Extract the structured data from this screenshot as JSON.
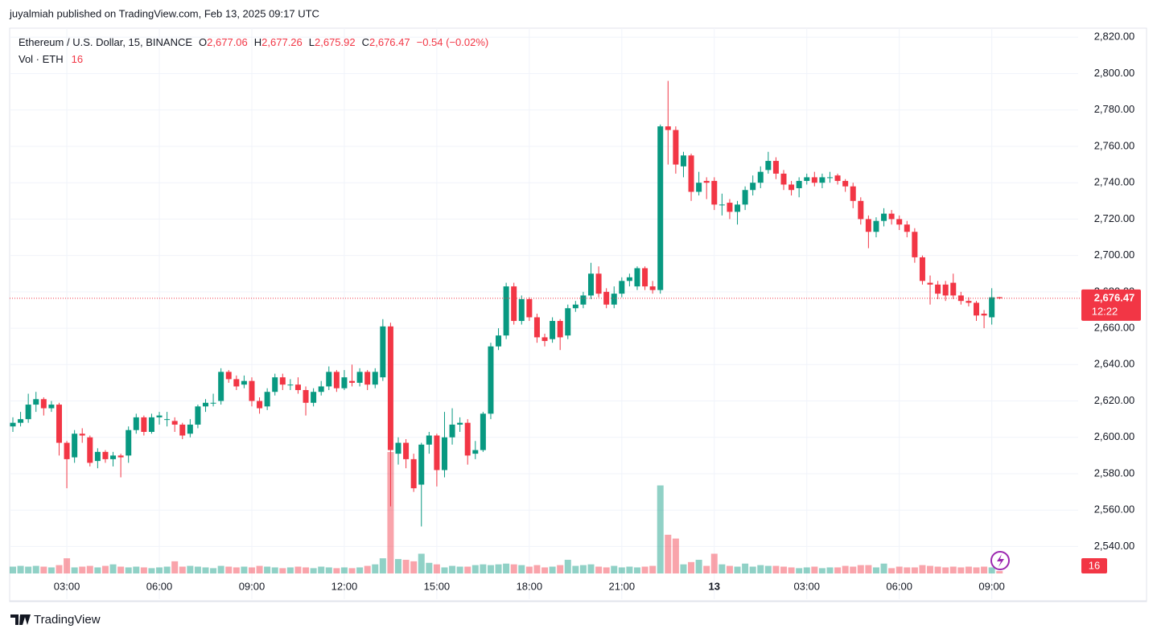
{
  "header": {
    "text": "juyalmiah published on TradingView.com, Feb 13, 2025 09:17 UTC"
  },
  "footer": {
    "brand": "TradingView"
  },
  "chart_data": {
    "type": "candlestick",
    "legend": {
      "symbol": "Ethereum / U.S. Dollar, 15, BINANCE",
      "o": "O",
      "open": "2,677.06",
      "h": "H",
      "high": "2,677.26",
      "l": "L",
      "low": "2,675.92",
      "c": "C",
      "close": "2,676.47",
      "change": "−0.54 (−0.02%)",
      "volume_title": "Vol · ETH"
    },
    "categories": [
      null,
      null,
      null,
      null,
      null,
      null,
      null,
      "03:00",
      null,
      null,
      null,
      null,
      null,
      null,
      null,
      null,
      null,
      null,
      null,
      "06:00",
      null,
      null,
      null,
      null,
      null,
      null,
      null,
      null,
      null,
      null,
      null,
      "09:00",
      null,
      null,
      null,
      null,
      null,
      null,
      null,
      null,
      null,
      null,
      null,
      "12:00",
      null,
      null,
      null,
      null,
      null,
      null,
      null,
      null,
      null,
      null,
      null,
      "15:00",
      null,
      null,
      null,
      null,
      null,
      null,
      null,
      null,
      null,
      null,
      null,
      "18:00",
      null,
      null,
      null,
      null,
      null,
      null,
      null,
      null,
      null,
      null,
      null,
      "21:00",
      null,
      null,
      null,
      null,
      null,
      null,
      null,
      null,
      null,
      null,
      null,
      "13",
      null,
      null,
      null,
      null,
      null,
      null,
      null,
      null,
      null,
      null,
      null,
      "03:00",
      null,
      null,
      null,
      null,
      null,
      null,
      null,
      null,
      null,
      null,
      null,
      "06:00",
      null,
      null,
      null,
      null,
      null,
      null,
      null,
      null,
      null,
      null,
      null,
      "09:00",
      null
    ],
    "open": [
      2606,
      2608,
      2610,
      2618,
      2621,
      2616,
      2618,
      2597,
      2589,
      2602,
      2600,
      2587,
      2592,
      2588,
      2590,
      2590,
      2604,
      2611,
      2603,
      2611,
      2610,
      2609,
      2607,
      2602,
      2607,
      2617,
      2619,
      2620,
      2636,
      2632,
      2629,
      2631,
      2620,
      2617,
      2625,
      2633,
      2629,
      2629,
      2626,
      2619,
      2625,
      2628,
      2636,
      2627,
      2631,
      2630,
      2636,
      2629,
      2633,
      2661,
      2591,
      2597,
      2588,
      2574,
      2596,
      2601,
      2582,
      2600,
      2607,
      2608,
      2591,
      2593,
      2613,
      2650,
      2656,
      2683,
      2664,
      2676,
      2666,
      2655,
      2654,
      2664,
      2656,
      2671,
      2673,
      2678,
      2690,
      2680,
      2673,
      2679,
      2686,
      2683,
      2693,
      2683,
      2681,
      2771,
      2769,
      2749,
      2755,
      2735,
      2741,
      2741,
      2728,
      2729,
      2724,
      2728,
      2736,
      2740,
      2747,
      2752,
      2745,
      2739,
      2737,
      2741,
      2743,
      2740,
      2743,
      2744,
      2741,
      2738,
      2730,
      2720,
      2713,
      2719,
      2723,
      2720,
      2717,
      2713,
      2699,
      2685,
      2684,
      2684,
      2685,
      2678,
      2675,
      2674,
      2668,
      2666,
      2677.06
    ],
    "high": [
      2611,
      2614,
      2624,
      2625,
      2622,
      2620,
      2619,
      2598,
      2604,
      2605,
      2601,
      2594,
      2593,
      2592,
      2591,
      2606,
      2613,
      2612,
      2613,
      2614,
      2614,
      2611,
      2608,
      2610,
      2618,
      2621,
      2624,
      2638,
      2637,
      2634,
      2634,
      2633,
      2622,
      2627,
      2635,
      2635,
      2632,
      2633,
      2628,
      2627,
      2631,
      2639,
      2637,
      2637,
      2640,
      2638,
      2637,
      2638,
      2665,
      2663,
      2600,
      2599,
      2591,
      2597,
      2603,
      2602,
      2614,
      2616,
      2611,
      2610,
      2598,
      2614,
      2652,
      2660,
      2685,
      2685,
      2678,
      2677,
      2668,
      2657,
      2666,
      2665,
      2673,
      2675,
      2680,
      2696,
      2694,
      2682,
      2683,
      2688,
      2690,
      2694,
      2694,
      2686,
      2772,
      2796,
      2771,
      2757,
      2756,
      2746,
      2743,
      2743,
      2734,
      2731,
      2730,
      2738,
      2744,
      2749,
      2757,
      2754,
      2747,
      2741,
      2743,
      2745,
      2746,
      2745,
      2746,
      2745,
      2742,
      2740,
      2732,
      2722,
      2721,
      2726,
      2725,
      2722,
      2719,
      2715,
      2700,
      2689,
      2686,
      2686,
      2690,
      2680,
      2677,
      2675,
      2670,
      2682,
      2677.26
    ],
    "low": [
      2603,
      2606,
      2608,
      2614,
      2612,
      2614,
      2590,
      2572,
      2586,
      2597,
      2584,
      2583,
      2586,
      2584,
      2578,
      2586,
      2602,
      2601,
      2602,
      2607,
      2606,
      2603,
      2599,
      2600,
      2605,
      2614,
      2617,
      2618,
      2630,
      2626,
      2627,
      2617,
      2613,
      2615,
      2623,
      2626,
      2626,
      2624,
      2612,
      2617,
      2623,
      2626,
      2625,
      2626,
      2628,
      2628,
      2626,
      2627,
      2631,
      2562,
      2585,
      2583,
      2570,
      2551,
      2591,
      2573,
      2578,
      2596,
      2603,
      2585,
      2588,
      2592,
      2610,
      2648,
      2654,
      2662,
      2662,
      2664,
      2652,
      2650,
      2652,
      2648,
      2654,
      2669,
      2671,
      2676,
      2677,
      2671,
      2671,
      2677,
      2683,
      2681,
      2681,
      2679,
      2679,
      2750,
      2745,
      2743,
      2730,
      2733,
      2731,
      2725,
      2722,
      2720,
      2717,
      2725,
      2733,
      2737,
      2745,
      2742,
      2736,
      2733,
      2732,
      2739,
      2738,
      2737,
      2740,
      2739,
      2735,
      2726,
      2717,
      2704,
      2710,
      2716,
      2717,
      2714,
      2710,
      2696,
      2684,
      2673,
      2676,
      2675,
      2676,
      2673,
      2672,
      2664,
      2660,
      2662,
      2675.92
    ],
    "close": [
      2608,
      2610,
      2618,
      2621,
      2616,
      2618,
      2597,
      2588,
      2602,
      2601,
      2586,
      2592,
      2588,
      2590,
      2589,
      2604,
      2611,
      2603,
      2611,
      2612,
      2610,
      2607,
      2601,
      2607,
      2617,
      2619,
      2619,
      2636,
      2632,
      2628,
      2631,
      2620,
      2616,
      2625,
      2633,
      2629,
      2629,
      2626,
      2619,
      2625,
      2628,
      2636,
      2627,
      2633,
      2630,
      2636,
      2629,
      2636,
      2661,
      2593,
      2597,
      2588,
      2572,
      2596,
      2601,
      2582,
      2600,
      2607,
      2608,
      2590,
      2593,
      2613,
      2650,
      2656,
      2683,
      2664,
      2676,
      2666,
      2655,
      2653,
      2664,
      2655,
      2671,
      2673,
      2678,
      2690,
      2679,
      2673,
      2679,
      2686,
      2688,
      2693,
      2683,
      2681,
      2771,
      2769,
      2750,
      2755,
      2735,
      2740,
      2740,
      2728,
      2728,
      2724,
      2728,
      2736,
      2740,
      2746,
      2752,
      2745,
      2739,
      2736,
      2741,
      2743,
      2740,
      2743,
      2743,
      2741,
      2738,
      2730,
      2720,
      2713,
      2719,
      2723,
      2720,
      2717,
      2713,
      2699,
      2686,
      2684,
      2679,
      2678,
      2678,
      2675,
      2674,
      2667,
      2667,
      2677,
      2676.47
    ],
    "volume": [
      45,
      50,
      45,
      50,
      45,
      40,
      55,
      100,
      40,
      45,
      50,
      40,
      50,
      60,
      45,
      40,
      45,
      40,
      35,
      40,
      45,
      80,
      45,
      50,
      45,
      40,
      35,
      50,
      45,
      40,
      45,
      40,
      50,
      45,
      40,
      35,
      40,
      45,
      40,
      35,
      45,
      40,
      35,
      40,
      35,
      40,
      50,
      60,
      100,
      800,
      95,
      90,
      80,
      130,
      70,
      60,
      40,
      50,
      45,
      45,
      55,
      60,
      55,
      60,
      65,
      60,
      55,
      45,
      55,
      40,
      45,
      55,
      90,
      50,
      55,
      60,
      45,
      40,
      50,
      40,
      45,
      40,
      45,
      50,
      580,
      255,
      230,
      60,
      75,
      90,
      50,
      130,
      60,
      50,
      45,
      65,
      45,
      55,
      50,
      50,
      45,
      40,
      35,
      40,
      45,
      35,
      40,
      40,
      50,
      45,
      55,
      55,
      40,
      65,
      35,
      45,
      40,
      40,
      55,
      50,
      45,
      40,
      45,
      40,
      45,
      40,
      45,
      40,
      16
    ],
    "ylim": [
      2511,
      2825
    ],
    "yticks": [
      {
        "value": 2540,
        "label": "2,540.00"
      },
      {
        "value": 2560,
        "label": "2,560.00"
      },
      {
        "value": 2580,
        "label": "2,580.00"
      },
      {
        "value": 2600,
        "label": "2,600.00"
      },
      {
        "value": 2620,
        "label": "2,620.00"
      },
      {
        "value": 2640,
        "label": "2,640.00"
      },
      {
        "value": 2660,
        "label": "2,660.00"
      },
      {
        "value": 2680,
        "label": "2,680.00"
      },
      {
        "value": 2700,
        "label": "2,700.00"
      },
      {
        "value": 2720,
        "label": "2,720.00"
      },
      {
        "value": 2740,
        "label": "2,740.00"
      },
      {
        "value": 2760,
        "label": "2,760.00"
      },
      {
        "value": 2780,
        "label": "2,780.00"
      },
      {
        "value": 2800,
        "label": "2,800.00"
      },
      {
        "value": 2820,
        "label": "2,820.00"
      }
    ],
    "price_label": "2,676.47",
    "countdown": "12:22",
    "up_color": "#089981",
    "down_color": "#f23645",
    "grid": true
  }
}
